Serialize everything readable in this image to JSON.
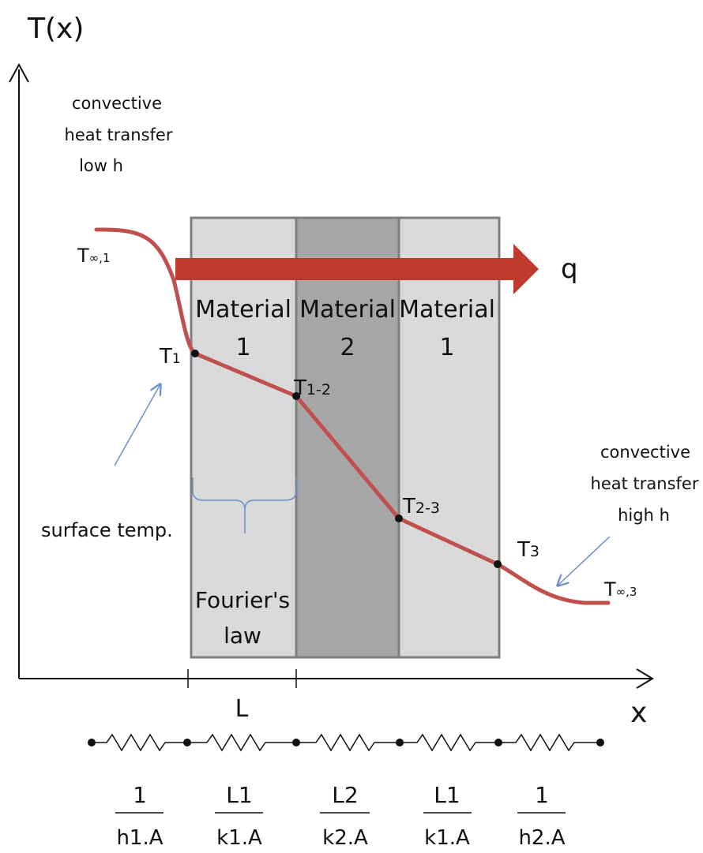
{
  "axes": {
    "y_label": "T(x)",
    "x_label": "x"
  },
  "labels": {
    "left_conv": [
      "convective",
      "heat transfer",
      "low h"
    ],
    "right_conv": [
      "convective",
      "heat transfer",
      "high h"
    ],
    "surface_temp": "surface temp.",
    "fourier": [
      "Fourier's",
      "law"
    ],
    "length": "L",
    "heat_flow": "q"
  },
  "materials": [
    {
      "line1": "Material",
      "line2": "1"
    },
    {
      "line1": "Material",
      "line2": "2"
    },
    {
      "line1": "Material",
      "line2": "1"
    }
  ],
  "temperatures": {
    "t_inf_1": {
      "main": "T",
      "sub": "∞,1"
    },
    "t1": {
      "main": "T",
      "sub": "1"
    },
    "t12": {
      "main": "T",
      "sub": "1-2"
    },
    "t23": {
      "main": "T",
      "sub": "2-3"
    },
    "t3": {
      "main": "T",
      "sub": "3"
    },
    "t_inf_3": {
      "main": "T",
      "sub": "∞,3"
    }
  },
  "resistances": [
    {
      "num": "1",
      "den": "h1.A"
    },
    {
      "num": "L1",
      "den": "k1.A"
    },
    {
      "num": "L2",
      "den": "k2.A"
    },
    {
      "num": "L1",
      "den": "k1.A"
    },
    {
      "num": "1",
      "den": "h2.A"
    }
  ],
  "colors": {
    "curve": "#c0504d",
    "material_light": "#d9d9d9",
    "material_dark": "#a6a6a6",
    "border": "#7f7f7f",
    "arrow": "#c0392b",
    "pointer": "#6b8fc9"
  }
}
